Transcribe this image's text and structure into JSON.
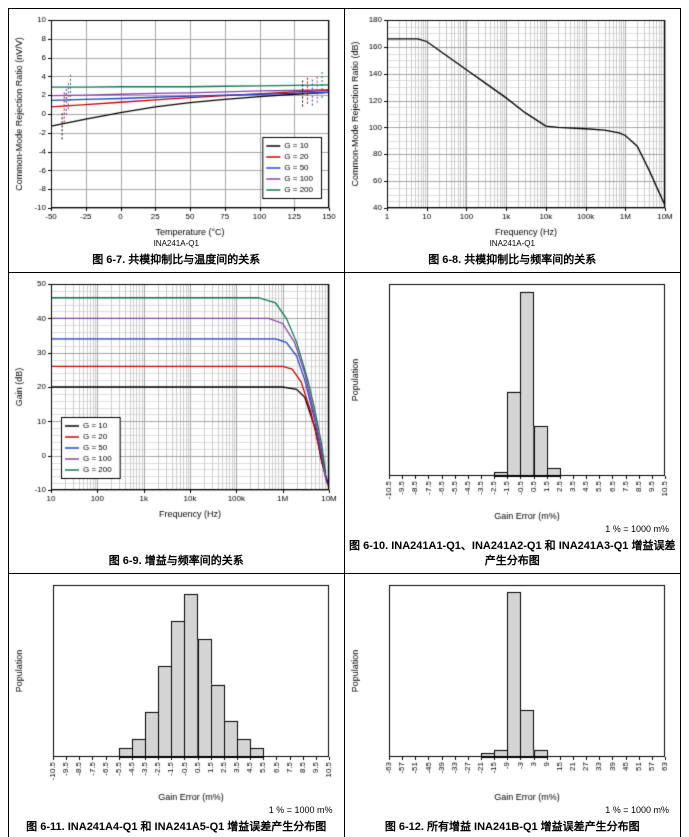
{
  "page": {
    "footer_rule": true
  },
  "chart_data": [
    {
      "id": "figure-6-7",
      "type": "line",
      "caption": "图 6-7. 共模抑制比与温度间的关系",
      "device_label": "INA241A-Q1",
      "xlabel": "Temperature (°C)",
      "ylabel": "Common-Mode Rejection Ratio (nV/V)",
      "xscale": "linear",
      "xlim": [
        -50,
        150
      ],
      "xticks": [
        -50,
        -25,
        0,
        25,
        50,
        75,
        100,
        125,
        150
      ],
      "ylim": [
        -10,
        10
      ],
      "yticks": [
        -10,
        -8,
        -6,
        -4,
        -2,
        0,
        2,
        4,
        6,
        8,
        10
      ],
      "legend_position": "bottom-right",
      "series": [
        {
          "name": "G = 10",
          "color": "#000000",
          "points": [
            [
              -50,
              -1.3
            ],
            [
              -25,
              -0.55
            ],
            [
              0,
              0.15
            ],
            [
              25,
              0.75
            ],
            [
              50,
              1.2
            ],
            [
              75,
              1.55
            ],
            [
              100,
              1.85
            ],
            [
              125,
              2.1
            ],
            [
              150,
              2.3
            ]
          ]
        },
        {
          "name": "G = 20",
          "color": "#cc0000",
          "points": [
            [
              -50,
              0.75
            ],
            [
              -25,
              1.0
            ],
            [
              0,
              1.25
            ],
            [
              25,
              1.5
            ],
            [
              50,
              1.75
            ],
            [
              75,
              1.95
            ],
            [
              100,
              2.15
            ],
            [
              125,
              2.35
            ],
            [
              150,
              2.5
            ]
          ]
        },
        {
          "name": "G = 50",
          "color": "#2244cc",
          "points": [
            [
              -50,
              1.45
            ],
            [
              -25,
              1.55
            ],
            [
              0,
              1.65
            ],
            [
              25,
              1.78
            ],
            [
              50,
              1.9
            ],
            [
              75,
              2.0
            ],
            [
              100,
              2.1
            ],
            [
              125,
              2.2
            ],
            [
              150,
              2.3
            ]
          ]
        },
        {
          "name": "G = 100",
          "color": "#8844aa",
          "points": [
            [
              -50,
              1.95
            ],
            [
              -25,
              2.0
            ],
            [
              0,
              2.1
            ],
            [
              25,
              2.2
            ],
            [
              50,
              2.25
            ],
            [
              75,
              2.35
            ],
            [
              100,
              2.45
            ],
            [
              125,
              2.5
            ],
            [
              150,
              2.6
            ]
          ]
        },
        {
          "name": "G = 200",
          "color": "#117755",
          "points": [
            [
              -50,
              2.85
            ],
            [
              -25,
              2.85
            ],
            [
              0,
              2.9
            ],
            [
              25,
              2.9
            ],
            [
              50,
              2.9
            ],
            [
              75,
              2.95
            ],
            [
              100,
              3.0
            ],
            [
              125,
              3.05
            ],
            [
              150,
              3.1
            ]
          ]
        }
      ],
      "errorbars": [
        {
          "x": -42,
          "y1": -2.7,
          "y2": 0.2,
          "s": 0
        },
        {
          "x": -40.5,
          "y1": -0.9,
          "y2": 2.3,
          "s": 1
        },
        {
          "x": -39,
          "y1": -0.1,
          "y2": 2.9,
          "s": 2
        },
        {
          "x": -37.5,
          "y1": 0.5,
          "y2": 3.4,
          "s": 3
        },
        {
          "x": -36,
          "y1": 1.4,
          "y2": 4.3,
          "s": 4
        },
        {
          "x": 131,
          "y1": 0.8,
          "y2": 3.6,
          "s": 0
        },
        {
          "x": 134.5,
          "y1": 1.1,
          "y2": 3.9,
          "s": 1
        },
        {
          "x": 138,
          "y1": 0.9,
          "y2": 3.7,
          "s": 2
        },
        {
          "x": 141.5,
          "y1": 1.2,
          "y2": 4.0,
          "s": 3
        },
        {
          "x": 145,
          "y1": 1.7,
          "y2": 4.5,
          "s": 4
        }
      ]
    },
    {
      "id": "figure-6-8",
      "type": "line",
      "caption": "图 6-8. 共模抑制比与频率间的关系",
      "device_label": "INA241A-Q1",
      "xlabel": "Frequency (Hz)",
      "ylabel": "Common-Mode Rejection Ratio (dB)",
      "xscale": "log",
      "xlim": [
        1,
        10000000
      ],
      "xticks": [
        {
          "v": 1,
          "l": "1"
        },
        {
          "v": 10,
          "l": "10"
        },
        {
          "v": 100,
          "l": "100"
        },
        {
          "v": 1000,
          "l": "1k"
        },
        {
          "v": 10000,
          "l": "10k"
        },
        {
          "v": 100000,
          "l": "100k"
        },
        {
          "v": 1000000,
          "l": "1M"
        },
        {
          "v": 10000000,
          "l": "10M"
        }
      ],
      "ylim": [
        40,
        180
      ],
      "yticks": [
        40,
        60,
        80,
        100,
        120,
        140,
        160,
        180
      ],
      "yminor": 5,
      "series": [
        {
          "name": "CMRR",
          "color": "#000000",
          "points": [
            [
              1,
              166
            ],
            [
              6,
              166
            ],
            [
              10,
              164
            ],
            [
              30,
              154
            ],
            [
              100,
              143
            ],
            [
              300,
              133
            ],
            [
              1000,
              122
            ],
            [
              3000,
              111
            ],
            [
              10000,
              101
            ],
            [
              20000,
              100
            ],
            [
              100000,
              99
            ],
            [
              300000,
              98
            ],
            [
              700000,
              96
            ],
            [
              1000000,
              94
            ],
            [
              2000000,
              86
            ],
            [
              4000000,
              68
            ],
            [
              7000000,
              52
            ],
            [
              10000000,
              42
            ]
          ]
        }
      ]
    },
    {
      "id": "figure-6-9",
      "type": "line",
      "caption": "图 6-9. 增益与频率间的关系",
      "xlabel": "Frequency (Hz)",
      "ylabel": "Gain (dB)",
      "xscale": "log",
      "xlim": [
        10,
        10000000
      ],
      "xticks": [
        {
          "v": 10,
          "l": "10"
        },
        {
          "v": 100,
          "l": "100"
        },
        {
          "v": 1000,
          "l": "1k"
        },
        {
          "v": 10000,
          "l": "10k"
        },
        {
          "v": 100000,
          "l": "100k"
        },
        {
          "v": 1000000,
          "l": "1M"
        },
        {
          "v": 10000000,
          "l": "10M"
        }
      ],
      "ylim": [
        -10,
        50
      ],
      "yticks": [
        -10,
        0,
        10,
        20,
        30,
        40,
        50
      ],
      "yminor": 2,
      "legend_position": "bottom-left",
      "series": [
        {
          "name": "G = 10",
          "color": "#000000",
          "points": [
            [
              10,
              20
            ],
            [
              1000000,
              20
            ],
            [
              2000000,
              19.3
            ],
            [
              3000000,
              17
            ],
            [
              5000000,
              8
            ],
            [
              7000000,
              -2
            ],
            [
              10000000,
              -9
            ]
          ]
        },
        {
          "name": "G = 20",
          "color": "#cc0000",
          "points": [
            [
              10,
              26
            ],
            [
              1000000,
              26
            ],
            [
              1600000,
              25.2
            ],
            [
              2500000,
              21.5
            ],
            [
              4000000,
              13
            ],
            [
              6000000,
              3
            ],
            [
              8000000,
              -5
            ],
            [
              10000000,
              -9.5
            ]
          ]
        },
        {
          "name": "G = 50",
          "color": "#2244cc",
          "points": [
            [
              10,
              34
            ],
            [
              700000,
              34
            ],
            [
              1200000,
              33
            ],
            [
              2000000,
              29
            ],
            [
              3000000,
              22
            ],
            [
              5000000,
              10
            ],
            [
              7000000,
              0
            ],
            [
              9000000,
              -8
            ]
          ]
        },
        {
          "name": "G = 100",
          "color": "#8844aa",
          "points": [
            [
              10,
              40
            ],
            [
              500000,
              40
            ],
            [
              1000000,
              38.5
            ],
            [
              1800000,
              33
            ],
            [
              3000000,
              24
            ],
            [
              5000000,
              11
            ],
            [
              7000000,
              1
            ],
            [
              8500000,
              -7
            ]
          ]
        },
        {
          "name": "G = 200",
          "color": "#117755",
          "points": [
            [
              10,
              46
            ],
            [
              300000,
              46
            ],
            [
              700000,
              44.5
            ],
            [
              1200000,
              40
            ],
            [
              2000000,
              33
            ],
            [
              3500000,
              22
            ],
            [
              5000000,
              13
            ],
            [
              7000000,
              3
            ],
            [
              8500000,
              -5
            ]
          ]
        }
      ]
    },
    {
      "id": "figure-6-10",
      "type": "histogram",
      "caption": "图 6-10. INA241A1-Q1、INA241A2-Q1 和 INA241A3-Q1 增益误差产生分布图",
      "note": "1 % = 1000 m%",
      "xlabel": "Gain Error (m%)",
      "ylabel": "Population",
      "xlim": [
        -10.5,
        10.5
      ],
      "xticks": [
        -10.5,
        -9.5,
        -8.5,
        -7.5,
        -6.5,
        -5.5,
        -4.5,
        -3.5,
        -2.5,
        -1.5,
        -0.5,
        0.5,
        1.5,
        2.5,
        3.5,
        4.5,
        5.5,
        6.5,
        7.5,
        8.5,
        9.5,
        10.5
      ],
      "ylim": [
        0,
        50
      ],
      "bin_width": 1,
      "bins": [
        {
          "x": -2.5,
          "n": 1
        },
        {
          "x": -1.5,
          "n": 22
        },
        {
          "x": -0.5,
          "n": 48
        },
        {
          "x": 0.5,
          "n": 13
        },
        {
          "x": 1.5,
          "n": 2
        }
      ]
    },
    {
      "id": "figure-6-11",
      "type": "histogram",
      "caption": "图 6-11. INA241A4-Q1 和 INA241A5-Q1 增益误差产生分布图",
      "note": "1 % = 1000 m%",
      "xlabel": "Gain Error (m%)",
      "ylabel": "Population",
      "xlim": [
        -10.5,
        10.5
      ],
      "xticks": [
        -10.5,
        -9.5,
        -8.5,
        -7.5,
        -6.5,
        -5.5,
        -4.5,
        -3.5,
        -2.5,
        -1.5,
        -0.5,
        0.5,
        1.5,
        2.5,
        3.5,
        4.5,
        5.5,
        6.5,
        7.5,
        8.5,
        9.5,
        10.5
      ],
      "ylim": [
        0,
        19
      ],
      "bin_width": 1,
      "bins": [
        {
          "x": -5.5,
          "n": 1
        },
        {
          "x": -4.5,
          "n": 2
        },
        {
          "x": -3.5,
          "n": 5
        },
        {
          "x": -2.5,
          "n": 10
        },
        {
          "x": -1.5,
          "n": 15
        },
        {
          "x": -0.5,
          "n": 18
        },
        {
          "x": 0.5,
          "n": 13
        },
        {
          "x": 1.5,
          "n": 8
        },
        {
          "x": 2.5,
          "n": 4
        },
        {
          "x": 3.5,
          "n": 2
        },
        {
          "x": 4.5,
          "n": 1
        }
      ]
    },
    {
      "id": "figure-6-12",
      "type": "histogram",
      "caption": "图 6-12. 所有增益 INA241B-Q1 增益误差产生分布图",
      "note": "1 % = 1000 m%",
      "xlabel": "Gain Error (m%)",
      "ylabel": "Population",
      "xlim": [
        -63,
        63
      ],
      "xticks": [
        -63,
        -57,
        -51,
        -45,
        -39,
        -33,
        -27,
        -21,
        -15,
        -9,
        -3,
        3,
        9,
        15,
        21,
        27,
        33,
        39,
        45,
        51,
        57,
        63
      ],
      "ylim": [
        0,
        48
      ],
      "bin_width": 6,
      "bins": [
        {
          "x": -21,
          "n": 1
        },
        {
          "x": -15,
          "n": 2
        },
        {
          "x": -9,
          "n": 46
        },
        {
          "x": -3,
          "n": 13
        },
        {
          "x": 3,
          "n": 2
        }
      ]
    }
  ]
}
